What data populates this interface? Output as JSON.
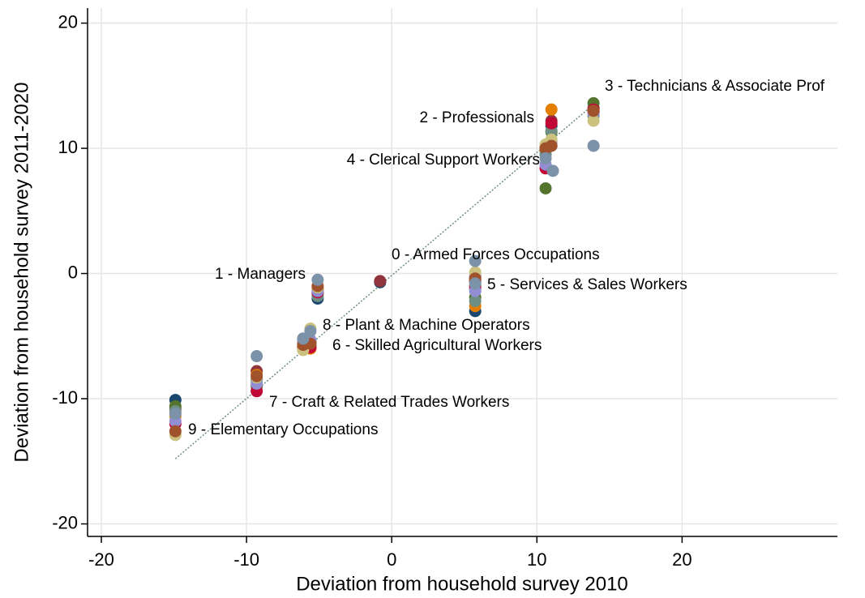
{
  "chart_data": {
    "type": "scatter",
    "xlabel": "Deviation from household survey 2010",
    "ylabel": "Deviation from household survey 2011-2020",
    "xlim": [
      -20.95,
      30.7
    ],
    "ylim": [
      -21.0,
      21.2
    ],
    "xticks": [
      -20,
      -10,
      0,
      10,
      20
    ],
    "yticks": [
      -20,
      -10,
      0,
      10,
      20
    ],
    "grid": true,
    "point_labels": [
      "0 - Armed Forces Occupations",
      "1 - Managers",
      "2 - Professionals",
      "3 - Technicians & Associate Prof",
      "4 - Clerical Support Workers",
      "5 - Services & Sales Workers",
      "6 - Skilled Agricultural Workers",
      "7 - Craft & Related Trades Workers",
      "8 - Plant & Machine Operators",
      "9 - Elementary Occupations"
    ],
    "fit_line": {
      "color": "#6e8e84",
      "x": [
        -14.9,
        14.0
      ],
      "y": [
        -14.8,
        13.6
      ]
    },
    "series": [
      {
        "color": "#1a476f",
        "x": [
          -0.8,
          -5.1,
          11.0,
          13.9,
          10.6,
          5.75,
          -5.6,
          -9.3,
          -6.1,
          -14.9
        ],
        "values": [
          -0.7,
          -2.0,
          11.8,
          12.9,
          9.8,
          -3.0,
          -5.8,
          -8.4,
          -5.6,
          -10.1
        ]
      },
      {
        "color": "#90353b",
        "x": [
          -0.8,
          -5.1,
          11.0,
          13.9,
          10.6,
          5.75,
          -5.6,
          -9.3,
          -6.1,
          -14.9
        ],
        "values": [
          -0.6,
          -1.2,
          12.2,
          13.2,
          10.1,
          -1.2,
          -5.5,
          -7.8,
          -5.8,
          -10.8
        ]
      },
      {
        "color": "#55752f",
        "x": [
          5.75,
          -5.1,
          11.0,
          13.9,
          10.6,
          5.75,
          -5.6,
          -9.3,
          -6.1,
          -14.9
        ],
        "values": [
          -0.3,
          -1.6,
          11.3,
          13.6,
          6.8,
          -1.9,
          -5.4,
          -9.0,
          -5.2,
          -10.6
        ]
      },
      {
        "color": "#e37e00",
        "x": [
          5.75,
          -5.1,
          11.0,
          13.9,
          10.6,
          5.75,
          -5.6,
          -9.3,
          -6.1,
          -14.9
        ],
        "values": [
          -0.5,
          -1.3,
          13.1,
          13.0,
          9.9,
          -2.6,
          -6.0,
          -8.1,
          -6.1,
          -11.4
        ]
      },
      {
        "color": "#6e8e84",
        "x": [
          5.75,
          -5.1,
          11.0,
          13.9,
          10.6,
          5.75,
          -5.6,
          -9.3,
          -6.1,
          -14.9
        ],
        "values": [
          -0.3,
          -1.8,
          11.4,
          12.6,
          9.5,
          -2.2,
          -5.7,
          -8.5,
          -5.3,
          -11.0
        ]
      },
      {
        "color": "#c10534",
        "x": [
          5.75,
          -5.1,
          11.0,
          13.9,
          10.6,
          5.75,
          -5.6,
          -9.3,
          -6.1,
          -14.9
        ],
        "values": [
          -0.6,
          -1.5,
          12.0,
          13.1,
          8.4,
          -1.0,
          -5.9,
          -9.4,
          -5.9,
          -12.0
        ]
      },
      {
        "color": "#938dd2",
        "x": [
          5.75,
          -5.1,
          11.0,
          13.9,
          10.6,
          5.75,
          -5.6,
          -9.3,
          -6.1,
          -14.9
        ],
        "values": [
          -0.2,
          -1.4,
          10.5,
          12.8,
          8.7,
          -1.4,
          -5.3,
          -8.8,
          -5.5,
          -11.8
        ]
      },
      {
        "color": "#cac27e",
        "x": [
          5.75,
          -5.1,
          11.0,
          13.9,
          10.6,
          5.75,
          -5.6,
          -9.3,
          -6.1,
          -14.9
        ],
        "values": [
          0.1,
          -1.1,
          10.7,
          12.2,
          10.3,
          -0.7,
          -4.4,
          -8.3,
          -6.1,
          -12.9
        ]
      },
      {
        "color": "#a0522d",
        "x": [
          5.75,
          -5.1,
          11.0,
          13.9,
          10.6,
          5.75,
          -5.6,
          -9.3,
          -6.1,
          -14.9
        ],
        "values": [
          -0.4,
          -1.0,
          10.2,
          13.0,
          10.0,
          -0.6,
          -5.6,
          -8.2,
          -5.7,
          -12.6
        ]
      },
      {
        "color": "#7b92a8",
        "x": [
          5.75,
          -5.1,
          11.1,
          13.9,
          10.6,
          5.75,
          -5.6,
          -9.3,
          -6.1,
          -14.9
        ],
        "values": [
          1.0,
          -0.5,
          8.2,
          10.2,
          9.2,
          -0.8,
          -4.6,
          -6.6,
          -5.2,
          -11.2
        ]
      }
    ]
  }
}
